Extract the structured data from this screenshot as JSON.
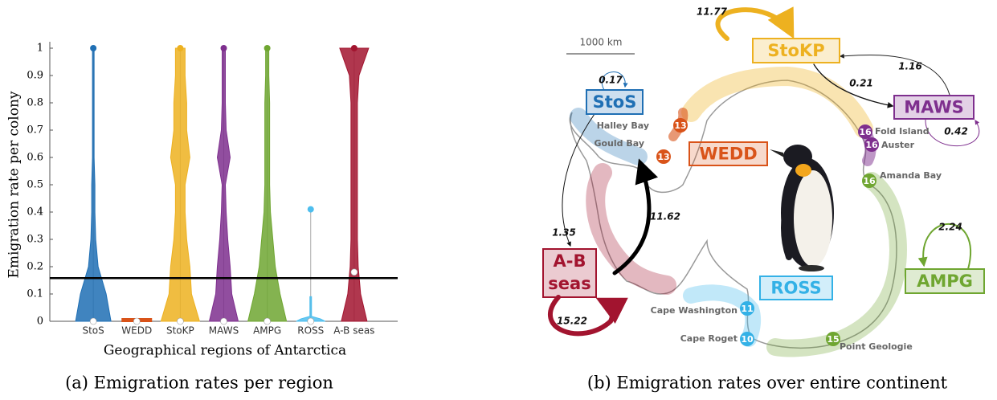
{
  "chart_data": {
    "type": "violin",
    "y_label": "Emigration rate per colony",
    "x_label": "Geographical regions of Antarctica",
    "categories": [
      "StoS",
      "WEDD",
      "StoKP",
      "MAWS",
      "AMPG",
      "ROSS",
      "A-B seas"
    ],
    "colors": [
      "#1f6fb4",
      "#d95319",
      "#edb120",
      "#7e2f8e",
      "#6fa631",
      "#4dbeee",
      "#a2142f"
    ],
    "medians": [
      0,
      0,
      0,
      0,
      0,
      0,
      0.18
    ],
    "maxima": [
      1,
      0,
      1,
      1,
      1,
      0.41,
      1
    ],
    "reference_line": 0.158,
    "ylim": [
      0,
      1
    ],
    "yticks": [
      0,
      0.1,
      0.2,
      0.3,
      0.4,
      0.5,
      0.6,
      0.7,
      0.8,
      0.9,
      1
    ],
    "caption": "(a) Emigration rates per region"
  },
  "map": {
    "caption": "(b) Emigration rates over entire continent",
    "scale_label": "1000 km",
    "regions": [
      {
        "label": "StoS",
        "color": "#1f6fb4"
      },
      {
        "label": "WEDD",
        "color": "#d95319"
      },
      {
        "label": "StoKP",
        "color": "#edb120"
      },
      {
        "label": "MAWS",
        "color": "#7e2f8e"
      },
      {
        "label": "AMPG",
        "color": "#6fa631"
      },
      {
        "label": "ROSS",
        "color": "#33b1e6"
      },
      {
        "label": "A-B seas",
        "color": "#a2142f",
        "lines": [
          "A-B",
          "seas"
        ]
      }
    ],
    "rates": [
      "0.17",
      "11.77",
      "1.16",
      "0.21",
      "0.42",
      "1.35",
      "11.62",
      "2.24",
      "15.22"
    ],
    "places": [
      "Halley Bay",
      "Gould Bay",
      "Fold Island",
      "Auster",
      "Amanda Bay",
      "Cape Washington",
      "Cape Roget",
      "Point Geologie"
    ],
    "colony_counts": [
      "13",
      "13",
      "16",
      "16",
      "16",
      "11",
      "10",
      "15"
    ]
  }
}
